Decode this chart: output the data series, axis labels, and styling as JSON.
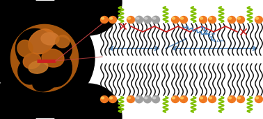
{
  "background_color": "#ffffff",
  "vesicle_bg": "#000000",
  "orange_head1": "#f07820",
  "orange_head2": "#ffd060",
  "grey_head1": "#a0a0a0",
  "grey_head2": "#d0d0d0",
  "green_color": "#80c000",
  "tail_color": "#101010",
  "blue_arrow": "#6090c0",
  "red_line": "#cc2020",
  "chem_red": "#cc2020",
  "chem_blue": "#4080c0",
  "fig_width": 3.78,
  "fig_height": 1.72,
  "dpi": 100
}
